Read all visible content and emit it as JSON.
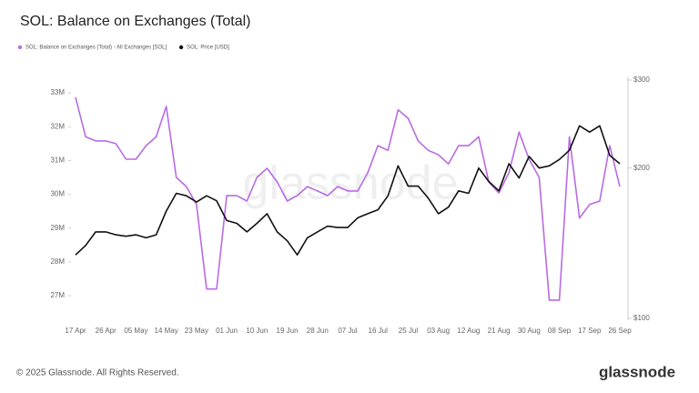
{
  "chart_data": {
    "type": "line",
    "title": "SOL: Balance on Exchanges (Total)",
    "watermark": "glassnode",
    "footer": "© 2025 Glassnode. All Rights Reserved.",
    "logo": "glassnode",
    "categories": [
      "17 Apr",
      null,
      null,
      "26 Apr",
      null,
      null,
      "05 May",
      null,
      null,
      "14 May",
      null,
      null,
      "23 May",
      null,
      null,
      "01 Jun",
      null,
      null,
      "10 Jun",
      null,
      null,
      "19 Jun",
      null,
      null,
      "28 Jun",
      null,
      null,
      "07 Jul",
      null,
      null,
      "16 Jul",
      null,
      null,
      "25 Jul",
      null,
      null,
      "03 Aug",
      null,
      null,
      "12 Aug",
      null,
      null,
      "21 Aug",
      null,
      null,
      "30 Aug",
      null,
      null,
      "08 Sep",
      null,
      null,
      "17 Sep",
      null,
      null,
      "26 Sep"
    ],
    "series": [
      {
        "name": "SOL: Balance on Exchanges (Total) - All Exchanges [SOL]",
        "color": "#b86be3",
        "axis": "y",
        "values": [
          32.87,
          31.7,
          31.58,
          31.58,
          31.5,
          31.04,
          31.04,
          31.44,
          31.7,
          32.6,
          30.5,
          30.23,
          29.7,
          27.2,
          27.2,
          29.96,
          29.96,
          29.8,
          30.5,
          30.77,
          30.37,
          29.8,
          29.96,
          30.23,
          30.1,
          29.96,
          30.23,
          30.1,
          30.1,
          30.64,
          31.44,
          31.3,
          32.5,
          32.25,
          31.58,
          31.3,
          31.17,
          30.9,
          31.44,
          31.44,
          31.7,
          30.37,
          30.04,
          30.64,
          31.84,
          31.04,
          30.5,
          26.87,
          26.87,
          31.7,
          29.3,
          29.7,
          29.8,
          31.44,
          30.23
        ]
      },
      {
        "name": "SOL: Price [USD]",
        "color": "#111111",
        "axis": "y2",
        "values": [
          134,
          140,
          149,
          149,
          147,
          146,
          147,
          145,
          147,
          164,
          178,
          176,
          171,
          176,
          172,
          157,
          155,
          149,
          155,
          162,
          149,
          143,
          134,
          145,
          149,
          153,
          152,
          152,
          159,
          162,
          165,
          176,
          202,
          184,
          184,
          174,
          162,
          167,
          180,
          178,
          200,
          188,
          180,
          204,
          191,
          211,
          200,
          202,
          208,
          217,
          243,
          236,
          243,
          212,
          204
        ]
      }
    ],
    "ylim": [
      26.33,
      33.38
    ],
    "yticks": [
      {
        "value": 27,
        "label": "27M"
      },
      {
        "value": 28,
        "label": "28M"
      },
      {
        "value": 29,
        "label": "29M"
      },
      {
        "value": 30,
        "label": "30M"
      },
      {
        "value": 31,
        "label": "31M"
      },
      {
        "value": 32,
        "label": "32M"
      },
      {
        "value": 33,
        "label": "33M"
      }
    ],
    "y2lim": [
      100,
      300
    ],
    "y2ticks": [
      {
        "value": 100,
        "label": "$100"
      },
      {
        "value": 200,
        "label": "$200"
      },
      {
        "value": 300,
        "label": "$300"
      }
    ],
    "y2scale": "log",
    "grid": false,
    "legend": "top-left"
  }
}
